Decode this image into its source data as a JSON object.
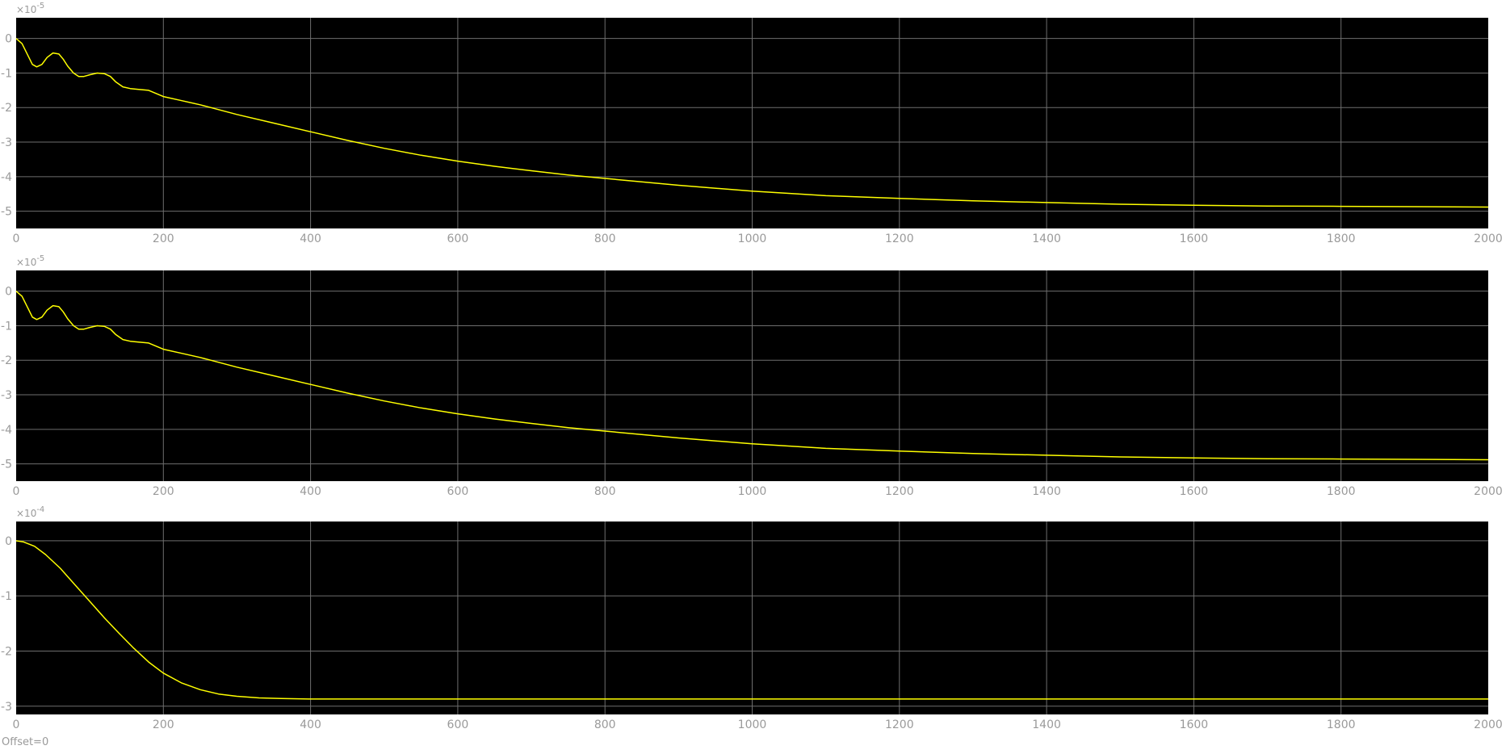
{
  "footer": {
    "offset_label": "Offset=0"
  },
  "colors": {
    "plot_background": "#000000",
    "signal": "#ffff00",
    "grid": "#6e6e6e",
    "tick_text": "#9a9a9a",
    "page_background": "#ffffff"
  },
  "chart_data": [
    {
      "type": "line",
      "exponent_label": "×10^-5",
      "exponent_base": "×10",
      "exponent_power": "-5",
      "grid": true,
      "xlim": [
        0,
        2000
      ],
      "ylim": [
        -5.5,
        0.6
      ],
      "xticks": [
        0,
        200,
        400,
        600,
        800,
        1000,
        1200,
        1400,
        1600,
        1800,
        2000
      ],
      "yticks": [
        0,
        -1,
        -2,
        -3,
        -4,
        -5
      ],
      "series": [
        {
          "x": [
            0,
            8,
            15,
            22,
            28,
            35,
            42,
            50,
            58,
            64,
            70,
            78,
            85,
            92,
            100,
            110,
            120,
            128,
            135,
            145,
            155,
            165,
            180,
            200,
            225,
            250,
            300,
            350,
            400,
            450,
            500,
            550,
            600,
            650,
            700,
            750,
            800,
            900,
            1000,
            1100,
            1200,
            1300,
            1400,
            1500,
            1600,
            1700,
            1800,
            1900,
            2000
          ],
          "values": [
            0,
            -0.15,
            -0.45,
            -0.75,
            -0.82,
            -0.75,
            -0.55,
            -0.42,
            -0.45,
            -0.6,
            -0.8,
            -1.0,
            -1.1,
            -1.1,
            -1.05,
            -1.0,
            -1.02,
            -1.1,
            -1.25,
            -1.4,
            -1.45,
            -1.47,
            -1.5,
            -1.68,
            -1.8,
            -1.92,
            -2.2,
            -2.45,
            -2.7,
            -2.95,
            -3.18,
            -3.38,
            -3.55,
            -3.7,
            -3.83,
            -3.95,
            -4.05,
            -4.25,
            -4.42,
            -4.55,
            -4.63,
            -4.7,
            -4.75,
            -4.8,
            -4.83,
            -4.85,
            -4.86,
            -4.87,
            -4.88
          ]
        }
      ]
    },
    {
      "type": "line",
      "exponent_label": "×10^-5",
      "exponent_base": "×10",
      "exponent_power": "-5",
      "grid": true,
      "xlim": [
        0,
        2000
      ],
      "ylim": [
        -5.5,
        0.6
      ],
      "xticks": [
        0,
        200,
        400,
        600,
        800,
        1000,
        1200,
        1400,
        1600,
        1800,
        2000
      ],
      "yticks": [
        0,
        -1,
        -2,
        -3,
        -4,
        -5
      ],
      "series": [
        {
          "x": [
            0,
            8,
            15,
            22,
            28,
            35,
            42,
            50,
            58,
            64,
            70,
            78,
            85,
            92,
            100,
            110,
            120,
            128,
            135,
            145,
            155,
            165,
            180,
            200,
            225,
            250,
            300,
            350,
            400,
            450,
            500,
            550,
            600,
            650,
            700,
            750,
            800,
            900,
            1000,
            1100,
            1200,
            1300,
            1400,
            1500,
            1600,
            1700,
            1800,
            1900,
            2000
          ],
          "values": [
            0,
            -0.15,
            -0.45,
            -0.75,
            -0.82,
            -0.75,
            -0.55,
            -0.42,
            -0.45,
            -0.6,
            -0.8,
            -1.0,
            -1.1,
            -1.1,
            -1.05,
            -1.0,
            -1.02,
            -1.1,
            -1.25,
            -1.4,
            -1.45,
            -1.47,
            -1.5,
            -1.68,
            -1.8,
            -1.92,
            -2.2,
            -2.45,
            -2.7,
            -2.95,
            -3.18,
            -3.38,
            -3.55,
            -3.7,
            -3.83,
            -3.95,
            -4.05,
            -4.25,
            -4.42,
            -4.55,
            -4.63,
            -4.7,
            -4.75,
            -4.8,
            -4.83,
            -4.85,
            -4.86,
            -4.87,
            -4.88
          ]
        }
      ]
    },
    {
      "type": "line",
      "exponent_label": "×10^-4",
      "exponent_base": "×10",
      "exponent_power": "-4",
      "grid": true,
      "xlim": [
        0,
        2000
      ],
      "ylim": [
        -3.15,
        0.35
      ],
      "xticks": [
        0,
        200,
        400,
        600,
        800,
        1000,
        1200,
        1400,
        1600,
        1800,
        2000
      ],
      "yticks": [
        0,
        -1,
        -2,
        -3
      ],
      "series": [
        {
          "x": [
            0,
            10,
            25,
            40,
            60,
            80,
            100,
            120,
            140,
            160,
            180,
            200,
            225,
            250,
            275,
            300,
            330,
            360,
            400,
            500,
            700,
            1000,
            1300,
            1600,
            2000
          ],
          "values": [
            0,
            -0.02,
            -0.1,
            -0.25,
            -0.5,
            -0.8,
            -1.1,
            -1.4,
            -1.68,
            -1.95,
            -2.2,
            -2.4,
            -2.58,
            -2.7,
            -2.78,
            -2.82,
            -2.85,
            -2.86,
            -2.87,
            -2.87,
            -2.87,
            -2.87,
            -2.87,
            -2.87,
            -2.87
          ]
        }
      ]
    }
  ]
}
